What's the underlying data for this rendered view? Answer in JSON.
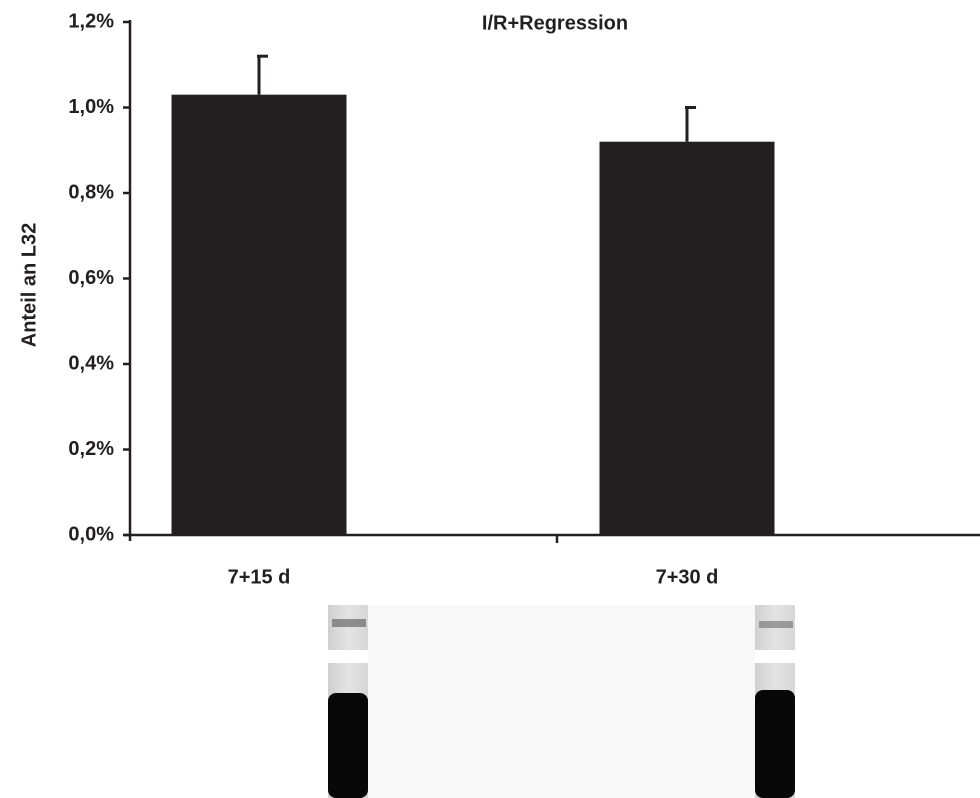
{
  "chart_data": {
    "type": "bar",
    "title": "I/R+Regression",
    "y_label": "Anteil an L32",
    "categories": [
      "7+15 d",
      "7+30 d"
    ],
    "values": [
      1.03,
      0.92
    ],
    "errors": [
      0.09,
      0.08
    ],
    "color": "#231f20",
    "ylim": [
      0,
      1.2
    ],
    "yticks": [
      {
        "value": 0,
        "label": "0,0%"
      },
      {
        "value": 0.2,
        "label": "0,2%"
      },
      {
        "value": 0.4,
        "label": "0,4%"
      },
      {
        "value": 0.6,
        "label": "0,6%"
      },
      {
        "value": 0.8,
        "label": "0,8%"
      },
      {
        "value": 1.0,
        "label": "1,0%"
      },
      {
        "value": 1.2,
        "label": "1,2%"
      }
    ]
  }
}
